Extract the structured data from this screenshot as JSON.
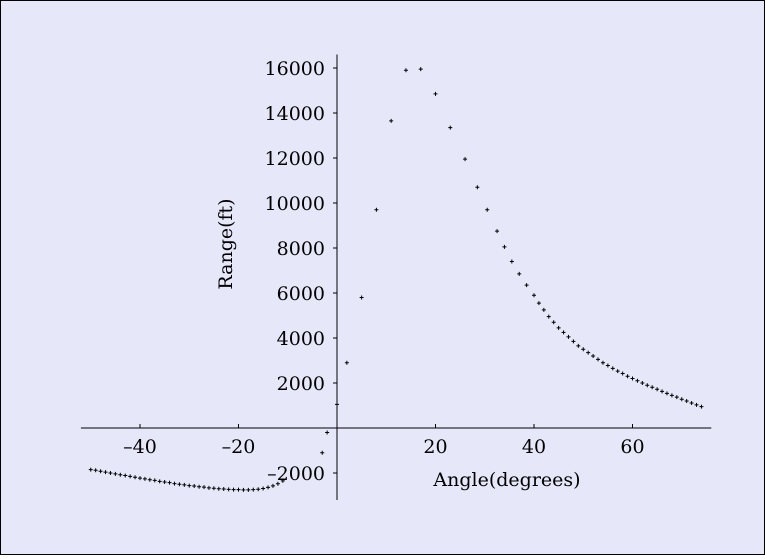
{
  "colors": {
    "background": "#e6e8fa",
    "frame": "#000000",
    "points": "#000000"
  },
  "chart_data": {
    "type": "scatter",
    "title": "",
    "xlabel": "Angle(degrees)",
    "ylabel": "Range(ft)",
    "xlim": [
      -52,
      76
    ],
    "ylim": [
      -3200,
      16600
    ],
    "grid": false,
    "legend": "none",
    "x_ticks": [
      {
        "value": -40,
        "label": "–40"
      },
      {
        "value": -20,
        "label": "–20"
      },
      {
        "value": 20,
        "label": "20"
      },
      {
        "value": 40,
        "label": "40"
      },
      {
        "value": 60,
        "label": "60"
      }
    ],
    "y_ticks": [
      {
        "value": -2000,
        "label": "–2000"
      },
      {
        "value": 2000,
        "label": "2000"
      },
      {
        "value": 4000,
        "label": "4000"
      },
      {
        "value": 6000,
        "label": "6000"
      },
      {
        "value": 8000,
        "label": "8000"
      },
      {
        "value": 10000,
        "label": "10000"
      },
      {
        "value": 12000,
        "label": "12000"
      },
      {
        "value": 14000,
        "label": "14000"
      },
      {
        "value": 16000,
        "label": "16000"
      }
    ],
    "series": [
      {
        "points": [
          [
            -50,
            -1850
          ],
          [
            -49,
            -1880
          ],
          [
            -48,
            -1920
          ],
          [
            -47,
            -1960
          ],
          [
            -46,
            -2000
          ],
          [
            -45,
            -2040
          ],
          [
            -44,
            -2080
          ],
          [
            -43,
            -2110
          ],
          [
            -42,
            -2150
          ],
          [
            -41,
            -2190
          ],
          [
            -40,
            -2230
          ],
          [
            -39,
            -2260
          ],
          [
            -38,
            -2300
          ],
          [
            -37,
            -2330
          ],
          [
            -36,
            -2370
          ],
          [
            -35,
            -2400
          ],
          [
            -34,
            -2430
          ],
          [
            -33,
            -2470
          ],
          [
            -32,
            -2500
          ],
          [
            -31,
            -2530
          ],
          [
            -30,
            -2560
          ],
          [
            -29,
            -2580
          ],
          [
            -28,
            -2610
          ],
          [
            -27,
            -2630
          ],
          [
            -26,
            -2660
          ],
          [
            -25,
            -2680
          ],
          [
            -24,
            -2700
          ],
          [
            -23,
            -2710
          ],
          [
            -22,
            -2730
          ],
          [
            -21,
            -2740
          ],
          [
            -20,
            -2740
          ],
          [
            -19,
            -2750
          ],
          [
            -18,
            -2750
          ],
          [
            -17,
            -2740
          ],
          [
            -16,
            -2720
          ],
          [
            -15,
            -2690
          ],
          [
            -14,
            -2640
          ],
          [
            -13,
            -2570
          ],
          [
            -12,
            -2480
          ],
          [
            -11,
            -2350
          ],
          [
            -3,
            -1100
          ],
          [
            -2,
            -200
          ],
          [
            0,
            1050
          ],
          [
            2,
            2900
          ],
          [
            5,
            5800
          ],
          [
            8,
            9700
          ],
          [
            11,
            13650
          ],
          [
            14,
            15900
          ],
          [
            17,
            15950
          ],
          [
            20,
            14850
          ],
          [
            23,
            13350
          ],
          [
            26,
            11950
          ],
          [
            28.5,
            10700
          ],
          [
            30.5,
            9700
          ],
          [
            32.5,
            8750
          ],
          [
            34,
            8050
          ],
          [
            35.5,
            7400
          ],
          [
            37,
            6850
          ],
          [
            38.5,
            6350
          ],
          [
            40,
            5900
          ],
          [
            41,
            5550
          ],
          [
            42,
            5250
          ],
          [
            43,
            4950
          ],
          [
            44,
            4700
          ],
          [
            45,
            4450
          ],
          [
            46,
            4250
          ],
          [
            47,
            4050
          ],
          [
            48,
            3850
          ],
          [
            49,
            3650
          ],
          [
            50,
            3500
          ],
          [
            51,
            3350
          ],
          [
            52,
            3200
          ],
          [
            53,
            3050
          ],
          [
            54,
            2900
          ],
          [
            55,
            2780
          ],
          [
            56,
            2650
          ],
          [
            57,
            2530
          ],
          [
            58,
            2420
          ],
          [
            59,
            2300
          ],
          [
            60,
            2200
          ],
          [
            61,
            2100
          ],
          [
            62,
            2000
          ],
          [
            63,
            1900
          ],
          [
            64,
            1810
          ],
          [
            65,
            1720
          ],
          [
            66,
            1630
          ],
          [
            67,
            1540
          ],
          [
            68,
            1450
          ],
          [
            69,
            1370
          ],
          [
            70,
            1280
          ],
          [
            71,
            1200
          ],
          [
            72,
            1110
          ],
          [
            73,
            1030
          ],
          [
            74,
            950
          ]
        ]
      }
    ]
  }
}
